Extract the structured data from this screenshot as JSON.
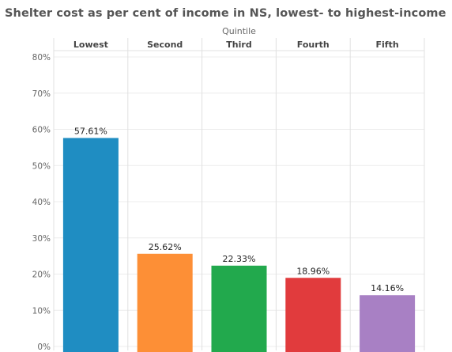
{
  "chart_data": {
    "type": "bar",
    "title": "Shelter cost as per cent of income in NS, lowest- to highest-income",
    "xlabel": "Quintile",
    "ylabel": "",
    "categories": [
      "Lowest",
      "Second",
      "Third",
      "Fourth",
      "Fifth"
    ],
    "values": [
      57.61,
      25.62,
      22.33,
      18.96,
      14.16
    ],
    "data_labels": [
      "57.61%",
      "25.62%",
      "22.33%",
      "18.96%",
      "14.16%"
    ],
    "colors": [
      "#1f8dc2",
      "#fd8f36",
      "#22a94d",
      "#e13b3d",
      "#a880c4"
    ],
    "ylim": [
      0,
      80
    ],
    "yticks": [
      0,
      10,
      20,
      30,
      40,
      50,
      60,
      70,
      80
    ],
    "ytick_labels": [
      "0%",
      "10%",
      "20%",
      "30%",
      "40%",
      "50%",
      "60%",
      "70%",
      "80%"
    ],
    "grid": true,
    "legend": "none"
  }
}
